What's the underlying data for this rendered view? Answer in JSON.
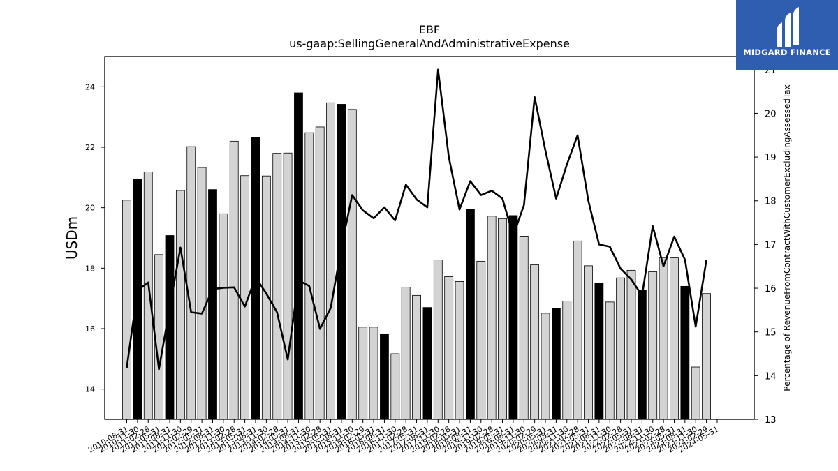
{
  "chart_data": {
    "type": "bar",
    "title": "EBF",
    "subtitle": "us-gaap:SellingGeneralAndAdministrativeExpense",
    "ylabel": "USDm",
    "y2label": "Percentage of RevenueFromContractWithCustomerExcludingAssessedTax",
    "ylim": [
      13,
      25
    ],
    "y2lim": [
      13,
      21.3
    ],
    "yticks": [
      14,
      16,
      18,
      20,
      22,
      24
    ],
    "y2ticks": [
      13,
      14,
      15,
      16,
      17,
      18,
      19,
      20,
      21
    ],
    "categories": [
      "2010-08-31",
      "2010-11-30",
      "2011-02-28",
      "2011-05-31",
      "2011-08-31",
      "2011-11-30",
      "2012-02-29",
      "2012-05-31",
      "2012-08-31",
      "2012-11-30",
      "2013-02-28",
      "2013-05-31",
      "2013-08-31",
      "2013-11-30",
      "2014-02-28",
      "2014-05-31",
      "2014-08-31",
      "2014-11-30",
      "2015-02-28",
      "2015-05-31",
      "2015-08-31",
      "2015-11-30",
      "2016-02-29",
      "2016-05-31",
      "2016-08-31",
      "2016-11-30",
      "2017-02-28",
      "2017-05-31",
      "2017-08-31",
      "2017-11-30",
      "2018-02-28",
      "2018-05-31",
      "2018-08-31",
      "2018-11-30",
      "2019-02-28",
      "2019-05-31",
      "2019-08-31",
      "2019-11-30",
      "2020-02-29",
      "2020-05-31",
      "2020-08-31",
      "2020-11-30",
      "2021-02-28",
      "2021-05-31",
      "2021-08-31",
      "2021-11-30",
      "2022-02-28",
      "2022-05-31",
      "2022-08-31",
      "2022-11-30",
      "2023-02-28",
      "2023-05-31",
      "2023-08-31",
      "2023-11-30",
      "2024-02-29",
      "2024-05-31"
    ],
    "series": [
      {
        "kind": "bar",
        "values": [
          20.25,
          20.95,
          21.18,
          18.45,
          19.08,
          20.57,
          22.02,
          21.33,
          20.6,
          19.8,
          22.2,
          21.06,
          22.33,
          21.05,
          21.8,
          21.81,
          23.8,
          22.48,
          22.67,
          23.47,
          23.42,
          23.25,
          16.05,
          16.05,
          15.83,
          15.17,
          17.37,
          17.1,
          16.7,
          18.27,
          17.72,
          17.56,
          19.94,
          18.23,
          19.72,
          19.64,
          19.74,
          19.06,
          18.11,
          16.51,
          16.68,
          16.91,
          18.9,
          18.08,
          17.51,
          16.88,
          17.68,
          17.93,
          17.28,
          17.88,
          18.35,
          18.34,
          17.4,
          14.73,
          17.16,
          null
        ],
        "highlight": [
          false,
          true,
          false,
          false,
          true,
          false,
          false,
          false,
          true,
          false,
          false,
          false,
          true,
          false,
          false,
          false,
          true,
          false,
          false,
          false,
          true,
          false,
          false,
          false,
          true,
          false,
          false,
          false,
          true,
          false,
          false,
          false,
          true,
          false,
          false,
          false,
          true,
          false,
          false,
          false,
          true,
          false,
          false,
          false,
          true,
          false,
          false,
          false,
          true,
          false,
          false,
          false,
          true,
          false,
          false,
          false
        ]
      },
      {
        "kind": "line",
        "axis": "right",
        "values": [
          14.18,
          15.95,
          16.13,
          14.15,
          15.55,
          16.93,
          15.45,
          15.42,
          15.98,
          16.01,
          16.02,
          15.58,
          16.25,
          15.88,
          15.45,
          14.37,
          16.18,
          16.05,
          15.07,
          15.55,
          16.95,
          18.13,
          17.78,
          17.6,
          17.85,
          17.55,
          18.37,
          18.03,
          17.85,
          21.0,
          19.0,
          17.8,
          18.45,
          18.13,
          18.23,
          18.05,
          17.2,
          17.9,
          20.37,
          19.15,
          18.05,
          18.83,
          19.5,
          18.0,
          17.0,
          16.95,
          16.45,
          16.2,
          15.83,
          17.42,
          16.5,
          17.18,
          16.65,
          15.12,
          16.65,
          null
        ]
      }
    ],
    "colors": {
      "bar": "#d3d3d3",
      "bar_highlight": "#000000",
      "line": "#000000"
    }
  },
  "logo": {
    "text": "MIDGARD FINANCE"
  }
}
